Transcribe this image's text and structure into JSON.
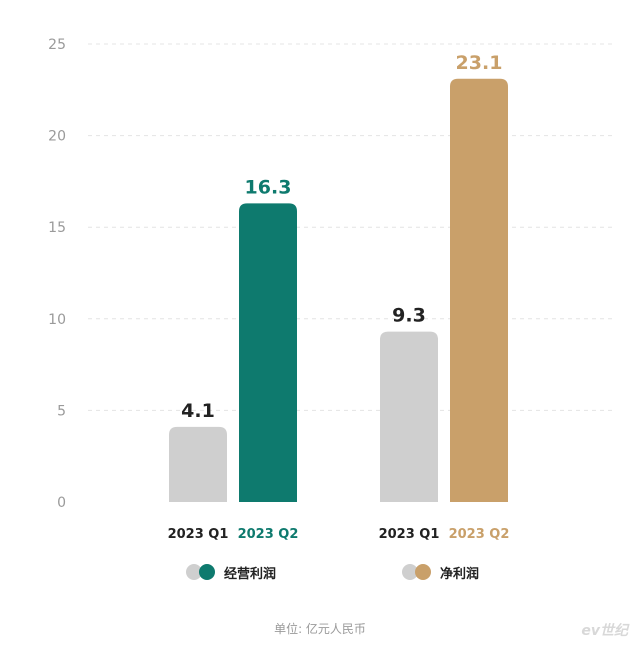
{
  "colors": {
    "gray": "#cfcfcf",
    "teal": "#0e7a6e",
    "gold": "#c9a06a",
    "grid": "#e4e4e4",
    "axis_text": "#9a9a9a"
  },
  "chart_data": {
    "type": "bar",
    "ylim": [
      0,
      25
    ],
    "yticks": [
      0,
      5,
      10,
      15,
      20,
      25
    ],
    "grid": true,
    "groups": [
      {
        "name": "经营利润",
        "bars": [
          {
            "period": "2023 Q1",
            "value": 4.1,
            "color": "#cfcfcf",
            "label_color": "#222222"
          },
          {
            "period": "2023 Q2",
            "value": 16.3,
            "color": "#0e7a6e",
            "label_color": "#0e7a6e"
          }
        ]
      },
      {
        "name": "净利润",
        "bars": [
          {
            "period": "2023 Q1",
            "value": 9.3,
            "color": "#cfcfcf",
            "label_color": "#222222"
          },
          {
            "period": "2023 Q2",
            "value": 23.1,
            "color": "#c9a06a",
            "label_color": "#c9a06a"
          }
        ]
      }
    ]
  },
  "legend": {
    "operating": {
      "label": "经营利润",
      "colors": [
        "#cfcfcf",
        "#0e7a6e"
      ]
    },
    "net": {
      "label": "净利润",
      "colors": [
        "#cfcfcf",
        "#c9a06a"
      ]
    }
  },
  "unit_note": "单位: 亿元人民币",
  "watermark": "ev世纪"
}
